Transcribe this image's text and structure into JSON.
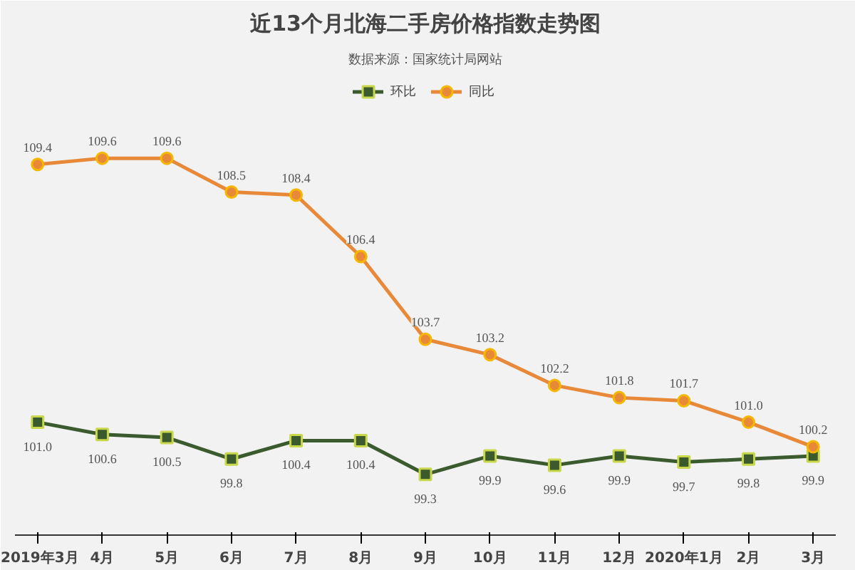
{
  "chart_data": {
    "type": "line",
    "title": "近13个月北海二手房价格指数走势图",
    "subtitle": "数据来源：国家统计局网站",
    "categories": [
      "2019年3月",
      "4月",
      "5月",
      "6月",
      "7月",
      "8月",
      "9月",
      "10月",
      "11月",
      "12月",
      "2020年1月",
      "2月",
      "3月"
    ],
    "series": [
      {
        "name": "环比",
        "color": "#3b5a2e",
        "marker": "square",
        "values": [
          101.0,
          100.6,
          100.5,
          99.8,
          100.4,
          100.4,
          99.3,
          99.9,
          99.6,
          99.9,
          99.7,
          99.8,
          99.9
        ],
        "value_labels": [
          "101.0",
          "100.6",
          "100.5",
          "99.8",
          "100.4",
          "100.4",
          "99.3",
          "99.9",
          "99.6",
          "99.9",
          "99.7",
          "99.8",
          "99.9"
        ]
      },
      {
        "name": "同比",
        "color": "#e8893a",
        "marker": "circle",
        "values": [
          109.4,
          109.6,
          109.6,
          108.5,
          108.4,
          106.4,
          103.7,
          103.2,
          102.2,
          101.8,
          101.7,
          101.0,
          100.2
        ],
        "value_labels": [
          "109.4",
          "109.6",
          "109.6",
          "108.5",
          "108.4",
          "106.4",
          "103.7",
          "103.2",
          "102.2",
          "101.8",
          "101.7",
          "101.0",
          "100.2"
        ]
      }
    ],
    "legend": "top"
  }
}
